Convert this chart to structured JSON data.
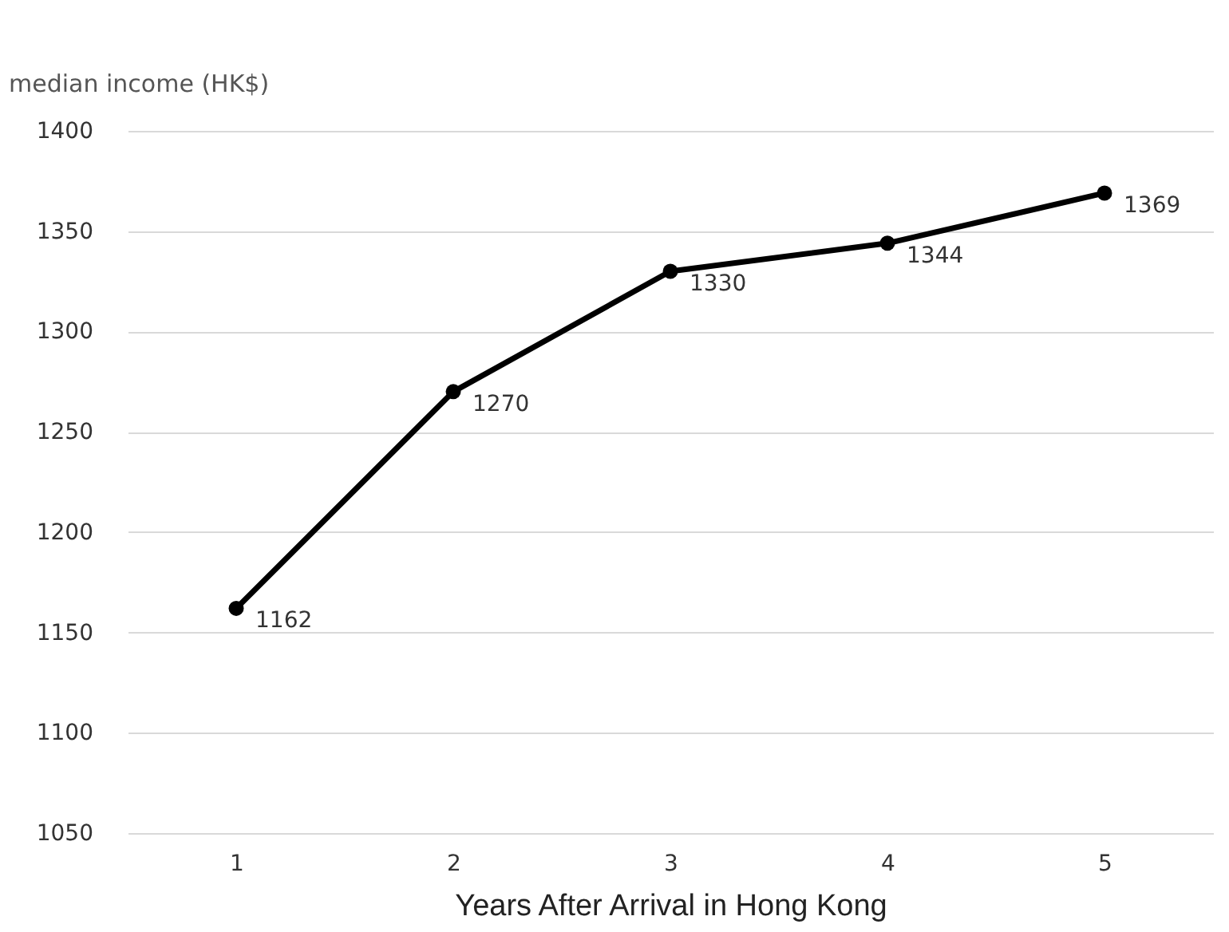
{
  "chart_data": {
    "type": "line",
    "ylabel": "median income (HK$)",
    "xlabel": "Years After Arrival in Hong Kong",
    "categories": [
      "1",
      "2",
      "3",
      "4",
      "5"
    ],
    "series": [
      {
        "color": "#000000",
        "values": [
          1162,
          1270,
          1330,
          1344,
          1369
        ]
      }
    ],
    "ylim": [
      1050,
      1400
    ],
    "yticks": [
      1050,
      1100,
      1150,
      1200,
      1250,
      1300,
      1350,
      1400
    ],
    "grid": "y",
    "marker": "circle",
    "line_style": "solid",
    "data_labels": true
  }
}
